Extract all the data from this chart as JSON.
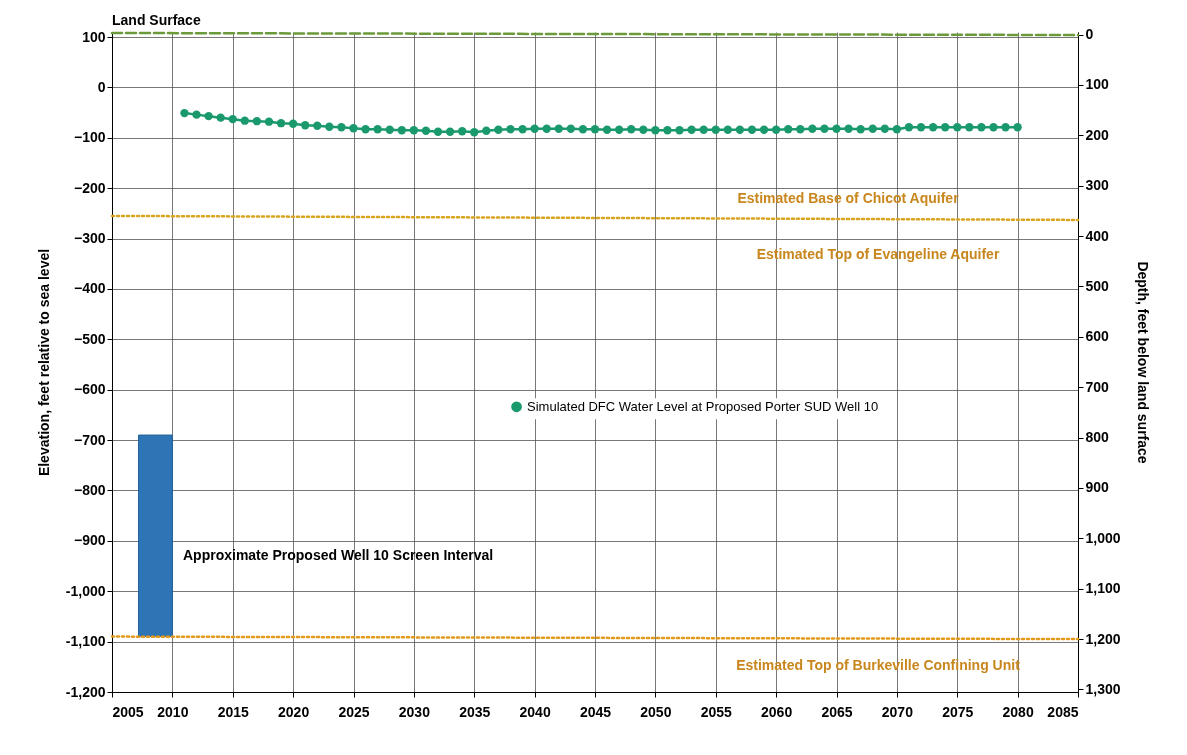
{
  "chart_data": {
    "type": "line",
    "xlim": [
      2005,
      2085
    ],
    "xticks": [
      2005,
      2010,
      2015,
      2020,
      2025,
      2030,
      2035,
      2040,
      2045,
      2050,
      2055,
      2060,
      2065,
      2070,
      2075,
      2080,
      2085
    ],
    "ylim": [
      -1200,
      110
    ],
    "yticks": [
      {
        "value": -1200,
        "label": "-1,200"
      },
      {
        "value": -1100,
        "label": "-1,100"
      },
      {
        "value": -1000,
        "label": "-1,000"
      },
      -900,
      -800,
      -700,
      -600,
      -500,
      -400,
      -300,
      -200,
      -100,
      0,
      100
    ],
    "y2lim": [
      1305,
      -5
    ],
    "y2ticks": [
      0,
      100,
      200,
      300,
      400,
      500,
      600,
      700,
      800,
      900,
      {
        "value": 1000,
        "label": "1,000"
      },
      {
        "value": 1100,
        "label": "1,100"
      },
      {
        "value": 1200,
        "label": "1,200"
      },
      {
        "value": 1300,
        "label": "1,300"
      }
    ],
    "ylabel": "Elevation, feet relative to sea level",
    "y2label": "Depth, feet below land surface",
    "grid": true,
    "legend": "right",
    "series": [
      {
        "name": "Simulated DFC Water Level at Proposed Porter SUD Well 10",
        "marker": "circle",
        "color": "#1a9a6c",
        "x": [
          2011,
          2012,
          2013,
          2014,
          2015,
          2016,
          2017,
          2018,
          2019,
          2020,
          2021,
          2022,
          2023,
          2024,
          2025,
          2026,
          2027,
          2028,
          2029,
          2030,
          2031,
          2032,
          2033,
          2034,
          2035,
          2036,
          2037,
          2038,
          2039,
          2040,
          2041,
          2042,
          2043,
          2044,
          2045,
          2046,
          2047,
          2048,
          2049,
          2050,
          2051,
          2052,
          2053,
          2054,
          2055,
          2056,
          2057,
          2058,
          2059,
          2060,
          2061,
          2062,
          2063,
          2064,
          2065,
          2066,
          2067,
          2068,
          2069,
          2070,
          2071,
          2072,
          2073,
          2074,
          2075,
          2076,
          2077,
          2078,
          2079,
          2080
        ],
        "values": [
          -51,
          -54,
          -57,
          -60,
          -63,
          -66,
          -67,
          -68,
          -71,
          -72,
          -75,
          -76,
          -78,
          -79,
          -81,
          -83,
          -83,
          -84,
          -85,
          -85,
          -86,
          -88,
          -88,
          -87,
          -89,
          -86,
          -84,
          -83,
          -83,
          -82,
          -82,
          -82,
          -82,
          -83,
          -83,
          -84,
          -84,
          -83,
          -84,
          -85,
          -85,
          -85,
          -84,
          -84,
          -84,
          -84,
          -84,
          -84,
          -84,
          -84,
          -83,
          -83,
          -82,
          -82,
          -82,
          -82,
          -83,
          -82,
          -82,
          -83,
          -79,
          -79,
          -79,
          -79,
          -79,
          -79,
          -79,
          -79,
          -79,
          -79
        ]
      },
      {
        "type": "line",
        "line_style": "dashed",
        "color": "#6b9a3a",
        "x": [
          2005,
          2085
        ],
        "values": [
          108,
          104
        ]
      },
      {
        "type": "line",
        "line_style": "dotted",
        "color": "#d9a520",
        "x": [
          2005,
          2085
        ],
        "values": [
          -255,
          -263
        ]
      },
      {
        "type": "line",
        "line_style": "dotted",
        "color": "#e39a1c",
        "x": [
          2005,
          2085
        ],
        "values": [
          -1090,
          -1095
        ]
      },
      {
        "type": "bar",
        "color": "#2e75b6",
        "x": [
          2008.6
        ],
        "base": [
          -1090
        ],
        "values": [
          400
        ]
      }
    ],
    "annotations": [
      "Land Surface",
      "Approximate Proposed Well 10 Screen Interval",
      "Estimated Base of Chicot Aquifer",
      "Estimated Top of Evangeline Aquifer",
      "Estimated Top of Burkeville Confining Unit"
    ]
  }
}
